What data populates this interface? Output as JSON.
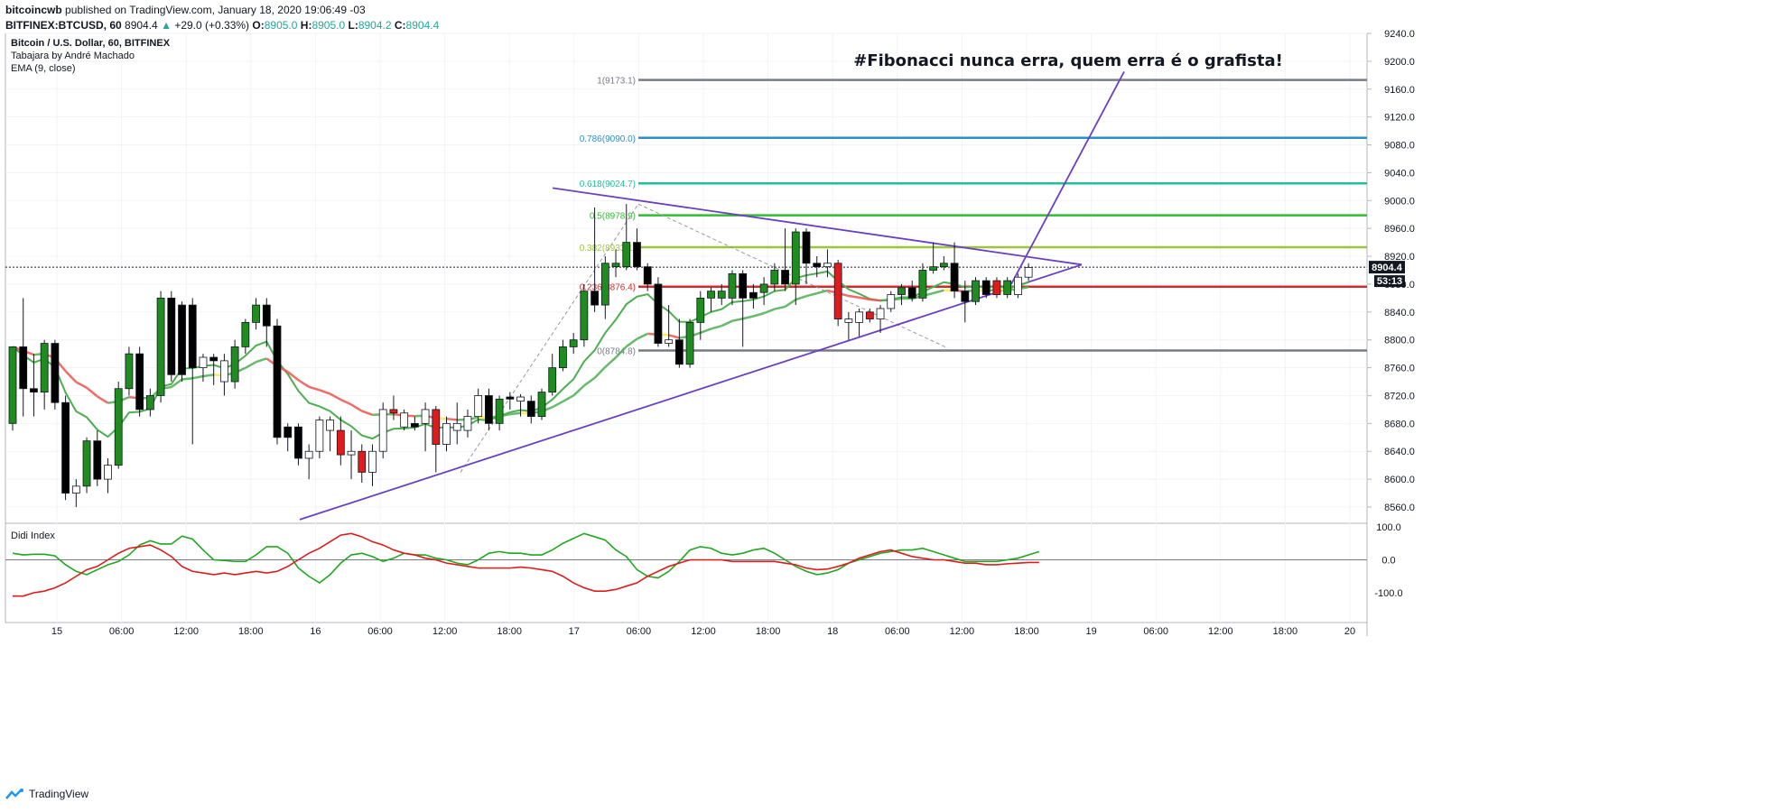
{
  "header": {
    "author": "bitcoincwb",
    "published_text": "published on TradingView.com, January 18, 2020 19:06:49 -03",
    "symbol": "BITFINEX:BTCUSD, 60",
    "last": "8904.4",
    "change": "+29.0 (+0.33%)",
    "o_label": "O:",
    "o": "8905.0",
    "h_label": "H:",
    "h": "8905.0",
    "l_label": "L:",
    "l": "8904.2",
    "c_label": "C:",
    "c": "8904.4"
  },
  "legend": {
    "title": "Bitcoin / U.S. Dollar, 60, BITFINEX",
    "indicator1": "Tabajara by André Machado",
    "indicator2": "EMA (9, close)"
  },
  "annotation": "#Fibonacci nunca erra, quem erra é o grafista!",
  "lower_panel_title": "Didi Index",
  "footer": {
    "brand": "TradingView"
  },
  "price_label": "8904.4",
  "countdown_label": "53:13",
  "colors": {
    "up": "#1e8c1e",
    "down": "#000000",
    "red_candle": "#e01b1b",
    "ema": "#4caf50",
    "trend": "#6a3fc4",
    "fib_1": "#787b86",
    "fib_786": "#2a8ec8",
    "fib_618": "#1fbf9a",
    "fib_5": "#2ebd2e",
    "fib_382": "#9cc53a",
    "fib_236": "#d42a2a",
    "fib_0": "#787b86"
  },
  "chart_data": {
    "type": "candlestick",
    "y_ticks": [
      "9240.0",
      "9200.0",
      "9160.0",
      "9120.0",
      "9080.0",
      "9040.0",
      "9000.0",
      "8960.0",
      "8920.0",
      "8880.0",
      "8840.0",
      "8800.0",
      "8760.0",
      "8720.0",
      "8680.0",
      "8640.0",
      "8600.0",
      "8560.0"
    ],
    "ylim": [
      8540,
      9250
    ],
    "x_ticks": [
      "15",
      "06:00",
      "12:00",
      "18:00",
      "16",
      "06:00",
      "12:00",
      "18:00",
      "17",
      "06:00",
      "12:00",
      "18:00",
      "18",
      "06:00",
      "12:00",
      "18:00",
      "19",
      "06:00",
      "12:00",
      "18:00",
      "20"
    ],
    "fib_levels": [
      {
        "label": "1(9173.1)",
        "value": 9173.1,
        "color": "#787b86"
      },
      {
        "label": "0.786(9090.0)",
        "value": 9090.0,
        "color": "#2a8ec8"
      },
      {
        "label": "0.618(9024.7)",
        "value": 9024.7,
        "color": "#1fbf9a"
      },
      {
        "label": "0.5(8978.9)",
        "value": 8978.9,
        "color": "#2ebd2e"
      },
      {
        "label": "0.382(8933.1)",
        "value": 8933.1,
        "color": "#9cc53a"
      },
      {
        "label": "0.236(8876.4)",
        "value": 8876.4,
        "color": "#d42a2a"
      },
      {
        "label": "0(8784.8)",
        "value": 8784.8,
        "color": "#787b86"
      }
    ],
    "candles": [
      {
        "o": 8680,
        "h": 8790,
        "l": 8670,
        "c": 8790,
        "t": "g"
      },
      {
        "o": 8790,
        "h": 8860,
        "l": 8690,
        "c": 8730,
        "t": "b"
      },
      {
        "o": 8730,
        "h": 8780,
        "l": 8690,
        "c": 8725,
        "t": "b"
      },
      {
        "o": 8725,
        "h": 8800,
        "l": 8700,
        "c": 8795,
        "t": "g"
      },
      {
        "o": 8795,
        "h": 8800,
        "l": 8700,
        "c": 8710,
        "t": "b"
      },
      {
        "o": 8710,
        "h": 8720,
        "l": 8570,
        "c": 8580,
        "t": "b"
      },
      {
        "o": 8580,
        "h": 8600,
        "l": 8560,
        "c": 8590,
        "t": "w"
      },
      {
        "o": 8590,
        "h": 8660,
        "l": 8580,
        "c": 8655,
        "t": "g"
      },
      {
        "o": 8655,
        "h": 8670,
        "l": 8590,
        "c": 8600,
        "t": "b"
      },
      {
        "o": 8600,
        "h": 8630,
        "l": 8580,
        "c": 8620,
        "t": "w"
      },
      {
        "o": 8620,
        "h": 8740,
        "l": 8615,
        "c": 8730,
        "t": "g"
      },
      {
        "o": 8730,
        "h": 8790,
        "l": 8720,
        "c": 8780,
        "t": "g"
      },
      {
        "o": 8780,
        "h": 8790,
        "l": 8690,
        "c": 8700,
        "t": "b"
      },
      {
        "o": 8700,
        "h": 8730,
        "l": 8690,
        "c": 8720,
        "t": "g"
      },
      {
        "o": 8720,
        "h": 8870,
        "l": 8710,
        "c": 8860,
        "t": "g"
      },
      {
        "o": 8860,
        "h": 8870,
        "l": 8740,
        "c": 8750,
        "t": "b"
      },
      {
        "o": 8750,
        "h": 8855,
        "l": 8740,
        "c": 8850,
        "t": "b"
      },
      {
        "o": 8850,
        "h": 8860,
        "l": 8650,
        "c": 8760,
        "t": "b"
      },
      {
        "o": 8760,
        "h": 8780,
        "l": 8740,
        "c": 8775,
        "t": "w"
      },
      {
        "o": 8775,
        "h": 8780,
        "l": 8735,
        "c": 8770,
        "t": "b"
      },
      {
        "o": 8770,
        "h": 8780,
        "l": 8720,
        "c": 8740,
        "t": "w"
      },
      {
        "o": 8740,
        "h": 8800,
        "l": 8730,
        "c": 8790,
        "t": "g"
      },
      {
        "o": 8790,
        "h": 8830,
        "l": 8780,
        "c": 8825,
        "t": "g"
      },
      {
        "o": 8825,
        "h": 8860,
        "l": 8815,
        "c": 8850,
        "t": "g"
      },
      {
        "o": 8850,
        "h": 8860,
        "l": 8790,
        "c": 8820,
        "t": "b"
      },
      {
        "o": 8820,
        "h": 8830,
        "l": 8650,
        "c": 8660,
        "t": "b"
      },
      {
        "o": 8660,
        "h": 8680,
        "l": 8640,
        "c": 8675,
        "t": "b"
      },
      {
        "o": 8675,
        "h": 8680,
        "l": 8620,
        "c": 8630,
        "t": "b"
      },
      {
        "o": 8630,
        "h": 8650,
        "l": 8600,
        "c": 8640,
        "t": "w"
      },
      {
        "o": 8640,
        "h": 8690,
        "l": 8630,
        "c": 8685,
        "t": "w"
      },
      {
        "o": 8685,
        "h": 8690,
        "l": 8640,
        "c": 8670,
        "t": "w"
      },
      {
        "o": 8670,
        "h": 8690,
        "l": 8620,
        "c": 8635,
        "t": "r"
      },
      {
        "o": 8635,
        "h": 8670,
        "l": 8600,
        "c": 8640,
        "t": "w"
      },
      {
        "o": 8640,
        "h": 8650,
        "l": 8595,
        "c": 8610,
        "t": "r"
      },
      {
        "o": 8610,
        "h": 8650,
        "l": 8590,
        "c": 8640,
        "t": "w"
      },
      {
        "o": 8640,
        "h": 8710,
        "l": 8630,
        "c": 8700,
        "t": "w"
      },
      {
        "o": 8700,
        "h": 8720,
        "l": 8685,
        "c": 8695,
        "t": "r"
      },
      {
        "o": 8695,
        "h": 8700,
        "l": 8670,
        "c": 8675,
        "t": "w"
      },
      {
        "o": 8675,
        "h": 8690,
        "l": 8670,
        "c": 8680,
        "t": "b"
      },
      {
        "o": 8680,
        "h": 8710,
        "l": 8640,
        "c": 8700,
        "t": "w"
      },
      {
        "o": 8700,
        "h": 8705,
        "l": 8610,
        "c": 8650,
        "t": "r"
      },
      {
        "o": 8650,
        "h": 8690,
        "l": 8640,
        "c": 8680,
        "t": "w"
      },
      {
        "o": 8680,
        "h": 8710,
        "l": 8650,
        "c": 8670,
        "t": "w"
      },
      {
        "o": 8670,
        "h": 8700,
        "l": 8660,
        "c": 8690,
        "t": "w"
      },
      {
        "o": 8690,
        "h": 8730,
        "l": 8680,
        "c": 8720,
        "t": "w"
      },
      {
        "o": 8720,
        "h": 8730,
        "l": 8670,
        "c": 8680,
        "t": "b"
      },
      {
        "o": 8680,
        "h": 8720,
        "l": 8670,
        "c": 8715,
        "t": "g"
      },
      {
        "o": 8715,
        "h": 8725,
        "l": 8700,
        "c": 8718,
        "t": "b"
      },
      {
        "o": 8718,
        "h": 8722,
        "l": 8690,
        "c": 8712,
        "t": "w"
      },
      {
        "o": 8712,
        "h": 8720,
        "l": 8680,
        "c": 8690,
        "t": "b"
      },
      {
        "o": 8690,
        "h": 8730,
        "l": 8685,
        "c": 8725,
        "t": "g"
      },
      {
        "o": 8725,
        "h": 8780,
        "l": 8720,
        "c": 8760,
        "t": "g"
      },
      {
        "o": 8760,
        "h": 8800,
        "l": 8755,
        "c": 8790,
        "t": "g"
      },
      {
        "o": 8790,
        "h": 8810,
        "l": 8780,
        "c": 8800,
        "t": "g"
      },
      {
        "o": 8800,
        "h": 8880,
        "l": 8790,
        "c": 8870,
        "t": "g"
      },
      {
        "o": 8870,
        "h": 8990,
        "l": 8840,
        "c": 8850,
        "t": "b"
      },
      {
        "o": 8850,
        "h": 8920,
        "l": 8830,
        "c": 8910,
        "t": "g"
      },
      {
        "o": 8910,
        "h": 8930,
        "l": 8890,
        "c": 8905,
        "t": "g"
      },
      {
        "o": 8905,
        "h": 8995,
        "l": 8900,
        "c": 8940,
        "t": "g"
      },
      {
        "o": 8940,
        "h": 8960,
        "l": 8900,
        "c": 8905,
        "t": "b"
      },
      {
        "o": 8905,
        "h": 8910,
        "l": 8870,
        "c": 8880,
        "t": "b"
      },
      {
        "o": 8880,
        "h": 8890,
        "l": 8790,
        "c": 8795,
        "t": "b"
      },
      {
        "o": 8795,
        "h": 8850,
        "l": 8790,
        "c": 8800,
        "t": "w"
      },
      {
        "o": 8800,
        "h": 8830,
        "l": 8760,
        "c": 8765,
        "t": "b"
      },
      {
        "o": 8765,
        "h": 8830,
        "l": 8760,
        "c": 8825,
        "t": "g"
      },
      {
        "o": 8825,
        "h": 8870,
        "l": 8800,
        "c": 8860,
        "t": "g"
      },
      {
        "o": 8860,
        "h": 8875,
        "l": 8840,
        "c": 8870,
        "t": "g"
      },
      {
        "o": 8870,
        "h": 8880,
        "l": 8850,
        "c": 8860,
        "t": "g"
      },
      {
        "o": 8860,
        "h": 8900,
        "l": 8850,
        "c": 8895,
        "t": "g"
      },
      {
        "o": 8895,
        "h": 8900,
        "l": 8790,
        "c": 8860,
        "t": "b"
      },
      {
        "o": 8860,
        "h": 8880,
        "l": 8845,
        "c": 8868,
        "t": "b"
      },
      {
        "o": 8868,
        "h": 8890,
        "l": 8850,
        "c": 8880,
        "t": "g"
      },
      {
        "o": 8880,
        "h": 8910,
        "l": 8870,
        "c": 8900,
        "t": "g"
      },
      {
        "o": 8900,
        "h": 8960,
        "l": 8870,
        "c": 8880,
        "t": "b"
      },
      {
        "o": 8880,
        "h": 8960,
        "l": 8850,
        "c": 8955,
        "t": "g"
      },
      {
        "o": 8955,
        "h": 8960,
        "l": 8880,
        "c": 8910,
        "t": "b"
      },
      {
        "o": 8910,
        "h": 8920,
        "l": 8890,
        "c": 8905,
        "t": "b"
      },
      {
        "o": 8905,
        "h": 8930,
        "l": 8890,
        "c": 8910,
        "t": "w"
      },
      {
        "o": 8910,
        "h": 8915,
        "l": 8820,
        "c": 8830,
        "t": "r"
      },
      {
        "o": 8830,
        "h": 8840,
        "l": 8800,
        "c": 8825,
        "t": "w"
      },
      {
        "o": 8825,
        "h": 8845,
        "l": 8805,
        "c": 8840,
        "t": "w"
      },
      {
        "o": 8840,
        "h": 8845,
        "l": 8825,
        "c": 8830,
        "t": "r"
      },
      {
        "o": 8830,
        "h": 8850,
        "l": 8810,
        "c": 8845,
        "t": "w"
      },
      {
        "o": 8845,
        "h": 8870,
        "l": 8840,
        "c": 8865,
        "t": "w"
      },
      {
        "o": 8865,
        "h": 8880,
        "l": 8850,
        "c": 8875,
        "t": "g"
      },
      {
        "o": 8875,
        "h": 8885,
        "l": 8855,
        "c": 8860,
        "t": "b"
      },
      {
        "o": 8860,
        "h": 8910,
        "l": 8855,
        "c": 8900,
        "t": "g"
      },
      {
        "o": 8900,
        "h": 8940,
        "l": 8895,
        "c": 8905,
        "t": "g"
      },
      {
        "o": 8905,
        "h": 8920,
        "l": 8900,
        "c": 8910,
        "t": "g"
      },
      {
        "o": 8910,
        "h": 8940,
        "l": 8860,
        "c": 8870,
        "t": "b"
      },
      {
        "o": 8870,
        "h": 8885,
        "l": 8825,
        "c": 8855,
        "t": "b"
      },
      {
        "o": 8855,
        "h": 8890,
        "l": 8850,
        "c": 8885,
        "t": "g"
      },
      {
        "o": 8885,
        "h": 8890,
        "l": 8860,
        "c": 8865,
        "t": "b"
      },
      {
        "o": 8865,
        "h": 8890,
        "l": 8860,
        "c": 8885,
        "t": "r"
      },
      {
        "o": 8885,
        "h": 8890,
        "l": 8860,
        "c": 8865,
        "t": "g"
      },
      {
        "o": 8865,
        "h": 8895,
        "l": 8860,
        "c": 8890,
        "t": "w"
      },
      {
        "o": 8890,
        "h": 8910,
        "l": 8885,
        "c": 8904,
        "t": "w"
      }
    ],
    "didi_green": [
      20,
      15,
      17,
      17,
      12,
      -15,
      -35,
      -45,
      -30,
      -15,
      -5,
      15,
      45,
      58,
      48,
      48,
      72,
      63,
      30,
      0,
      -2,
      -5,
      -5,
      15,
      40,
      40,
      20,
      -25,
      -50,
      -70,
      -45,
      -10,
      15,
      20,
      10,
      -5,
      5,
      20,
      15,
      15,
      5,
      0,
      -10,
      -15,
      0,
      20,
      25,
      20,
      20,
      15,
      15,
      30,
      50,
      65,
      80,
      70,
      60,
      30,
      10,
      -30,
      -50,
      -55,
      -35,
      -5,
      30,
      40,
      35,
      20,
      15,
      20,
      30,
      35,
      20,
      0,
      -20,
      -35,
      -45,
      -40,
      -30,
      -10,
      0,
      10,
      20,
      25,
      30,
      30,
      35,
      25,
      15,
      5,
      -5,
      -5,
      -5,
      -5,
      0,
      5,
      15,
      25
    ],
    "didi_red": [
      -110,
      -110,
      -100,
      -95,
      -85,
      -70,
      -50,
      -30,
      -20,
      0,
      20,
      35,
      40,
      45,
      30,
      10,
      -20,
      -35,
      -40,
      -45,
      -40,
      -45,
      -40,
      -35,
      -40,
      -35,
      -20,
      0,
      20,
      35,
      55,
      75,
      80,
      70,
      55,
      45,
      30,
      20,
      15,
      5,
      0,
      -10,
      -15,
      -20,
      -25,
      -25,
      -25,
      -25,
      -22,
      -25,
      -30,
      -35,
      -50,
      -70,
      -85,
      -95,
      -95,
      -90,
      -80,
      -70,
      -50,
      -35,
      -20,
      -10,
      0,
      0,
      0,
      0,
      -5,
      -5,
      -5,
      -5,
      -5,
      -10,
      -15,
      -25,
      -30,
      -28,
      -20,
      -10,
      5,
      15,
      25,
      30,
      20,
      10,
      5,
      0,
      0,
      -5,
      -10,
      -10,
      -15,
      -15,
      -12,
      -10,
      -8,
      -8
    ],
    "didi_ticks": [
      "100.0",
      "0.0",
      "-100.0"
    ],
    "didi_ylim": [
      -115,
      105
    ]
  }
}
